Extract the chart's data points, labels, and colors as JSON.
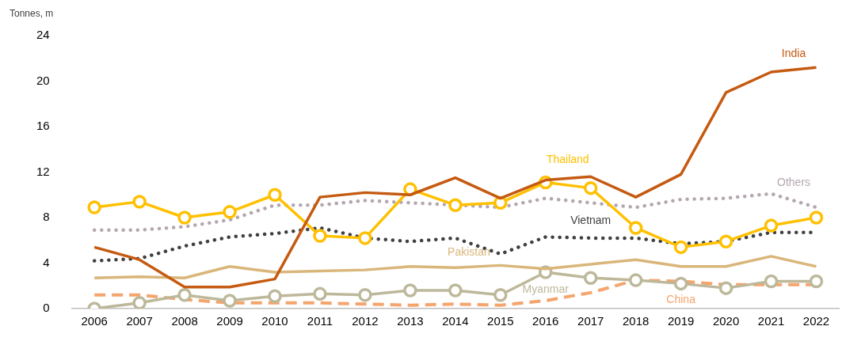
{
  "chart_data": {
    "type": "line",
    "ylabel": "Tonnes, m",
    "categories": [
      "2006",
      "2007",
      "2008",
      "2009",
      "2010",
      "2011",
      "2012",
      "2013",
      "2014",
      "2015",
      "2016",
      "2017",
      "2018",
      "2019",
      "2020",
      "2021",
      "2022"
    ],
    "ylim": [
      0,
      24
    ],
    "yticks": [
      0,
      4,
      8,
      12,
      16,
      20,
      24
    ],
    "grid": false,
    "legend": false,
    "series": [
      {
        "name": "India",
        "color": "#c55a11",
        "line_style": "solid",
        "marker": "none",
        "values": [
          5.4,
          4.3,
          1.9,
          1.9,
          2.6,
          9.8,
          10.2,
          10.0,
          11.5,
          9.7,
          11.3,
          11.6,
          9.8,
          11.8,
          19.0,
          20.8,
          21.2
        ]
      },
      {
        "name": "Thailand",
        "color": "#ffc000",
        "line_style": "solid",
        "marker": "circle",
        "values": [
          8.9,
          9.4,
          8.0,
          8.5,
          10.0,
          6.4,
          6.2,
          10.5,
          9.1,
          9.3,
          11.1,
          10.6,
          7.1,
          5.4,
          5.9,
          7.3,
          8.0
        ]
      },
      {
        "name": "Others",
        "color": "#b4a7b0",
        "line_style": "dotted",
        "marker": "none",
        "values": [
          6.9,
          6.9,
          7.2,
          7.8,
          9.1,
          9.1,
          9.5,
          9.3,
          null,
          8.9,
          9.7,
          9.3,
          8.9,
          9.6,
          9.7,
          10.1,
          8.9
        ]
      },
      {
        "name": "Vietnam",
        "color": "#404040",
        "line_style": "dotted",
        "marker": "none",
        "values": [
          4.2,
          4.4,
          5.5,
          6.3,
          6.6,
          7.1,
          6.2,
          5.9,
          6.2,
          4.8,
          6.3,
          6.2,
          6.2,
          5.7,
          5.9,
          6.7,
          6.7
        ]
      },
      {
        "name": "Pakistan",
        "color": "#d9b67a",
        "line_style": "solid",
        "marker": "none",
        "values": [
          2.7,
          2.8,
          2.7,
          3.7,
          3.2,
          3.3,
          3.4,
          3.7,
          3.6,
          3.8,
          3.5,
          3.9,
          4.3,
          3.7,
          3.7,
          4.6,
          3.7
        ]
      },
      {
        "name": "Myanmar",
        "color": "#bdb89a",
        "line_style": "solid",
        "marker": "circle",
        "values": [
          0.0,
          0.5,
          1.2,
          0.7,
          1.1,
          1.3,
          1.2,
          1.6,
          1.6,
          1.2,
          3.2,
          2.7,
          2.5,
          2.2,
          1.8,
          2.4,
          2.4
        ]
      },
      {
        "name": "China",
        "color": "#f4a46c",
        "line_style": "dashed",
        "marker": "none",
        "values": [
          1.2,
          1.2,
          0.8,
          0.5,
          0.5,
          0.5,
          0.4,
          0.3,
          0.4,
          0.3,
          0.7,
          1.4,
          2.5,
          2.4,
          2.1,
          2.1,
          2.1
        ]
      }
    ]
  }
}
